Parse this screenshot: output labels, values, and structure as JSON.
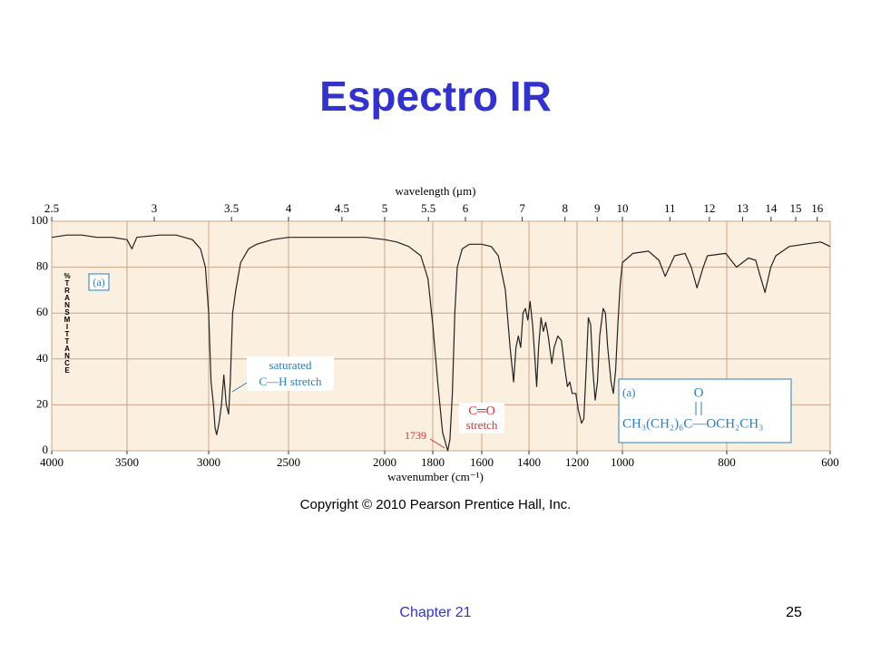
{
  "title": "Espectro IR",
  "chart_data": {
    "type": "line",
    "x2label": "wavelength (μm)",
    "x2ticks": [
      2.5,
      3,
      3.5,
      4,
      4.5,
      5,
      5.5,
      6,
      7,
      8,
      9,
      10,
      11,
      12,
      13,
      14,
      15,
      16
    ],
    "xlabel": "wavenumber (cm⁻¹)",
    "ylabel": "%TRANSMITTANCE",
    "xlim": [
      4000,
      600
    ],
    "xticks": [
      4000,
      3500,
      3000,
      2500,
      2000,
      1800,
      1600,
      1400,
      1200,
      1000,
      800,
      600
    ],
    "ylim": [
      0,
      100
    ],
    "yticks": [
      0,
      20,
      40,
      60,
      80,
      100
    ],
    "grid": true,
    "color": "#222222",
    "x": [
      4000,
      3900,
      3800,
      3700,
      3600,
      3500,
      3470,
      3440,
      3300,
      3200,
      3100,
      3050,
      3020,
      3000,
      2985,
      2970,
      2960,
      2950,
      2935,
      2920,
      2905,
      2890,
      2875,
      2865,
      2850,
      2830,
      2800,
      2750,
      2700,
      2600,
      2500,
      2400,
      2300,
      2200,
      2100,
      2000,
      1950,
      1900,
      1850,
      1820,
      1800,
      1780,
      1760,
      1739,
      1730,
      1720,
      1710,
      1700,
      1680,
      1650,
      1600,
      1560,
      1530,
      1500,
      1480,
      1465,
      1455,
      1445,
      1435,
      1425,
      1415,
      1405,
      1395,
      1385,
      1375,
      1368,
      1360,
      1350,
      1340,
      1330,
      1320,
      1305,
      1295,
      1280,
      1265,
      1250,
      1240,
      1230,
      1220,
      1205,
      1195,
      1180,
      1170,
      1160,
      1150,
      1140,
      1130,
      1120,
      1110,
      1100,
      1085,
      1075,
      1065,
      1050,
      1040,
      1030,
      1020,
      1010,
      1000,
      980,
      950,
      930,
      918,
      900,
      880,
      868,
      857,
      845,
      837,
      802,
      781,
      758,
      744,
      735,
      726,
      715,
      705,
      679,
      650,
      618,
      600
    ],
    "values": [
      93,
      94,
      94,
      93,
      93,
      92,
      88,
      93,
      94,
      94,
      92,
      88,
      80,
      60,
      30,
      20,
      10,
      7,
      12,
      20,
      33,
      20,
      16,
      30,
      60,
      70,
      82,
      88,
      90,
      92,
      93,
      93,
      93,
      93,
      93,
      92,
      91,
      89,
      85,
      75,
      55,
      30,
      8,
      0,
      5,
      25,
      60,
      80,
      88,
      90,
      90,
      89,
      85,
      70,
      45,
      30,
      45,
      50,
      45,
      60,
      62,
      57,
      65,
      55,
      40,
      28,
      45,
      58,
      52,
      56,
      50,
      38,
      45,
      50,
      48,
      35,
      28,
      30,
      25,
      25,
      18,
      12,
      14,
      35,
      58,
      55,
      35,
      22,
      30,
      50,
      62,
      60,
      45,
      30,
      25,
      35,
      55,
      72,
      82,
      86,
      87,
      83,
      76,
      85,
      86,
      80,
      71,
      80,
      85,
      86,
      80,
      84,
      83,
      76,
      69,
      80,
      85,
      89,
      90,
      91,
      89
    ],
    "annotations": [
      "(a)",
      "saturated",
      "C—H stretch",
      "1739",
      "C═O",
      "stretch"
    ],
    "structure": {
      "label": "(a)",
      "top": "O",
      "formula": "CH₃(CH₂)₆C—OCH₂CH₃"
    },
    "copyright": "Copyright © 2010 Pearson Prentice Hall, Inc."
  },
  "footer": {
    "chapter": "Chapter 21",
    "page": "25"
  }
}
